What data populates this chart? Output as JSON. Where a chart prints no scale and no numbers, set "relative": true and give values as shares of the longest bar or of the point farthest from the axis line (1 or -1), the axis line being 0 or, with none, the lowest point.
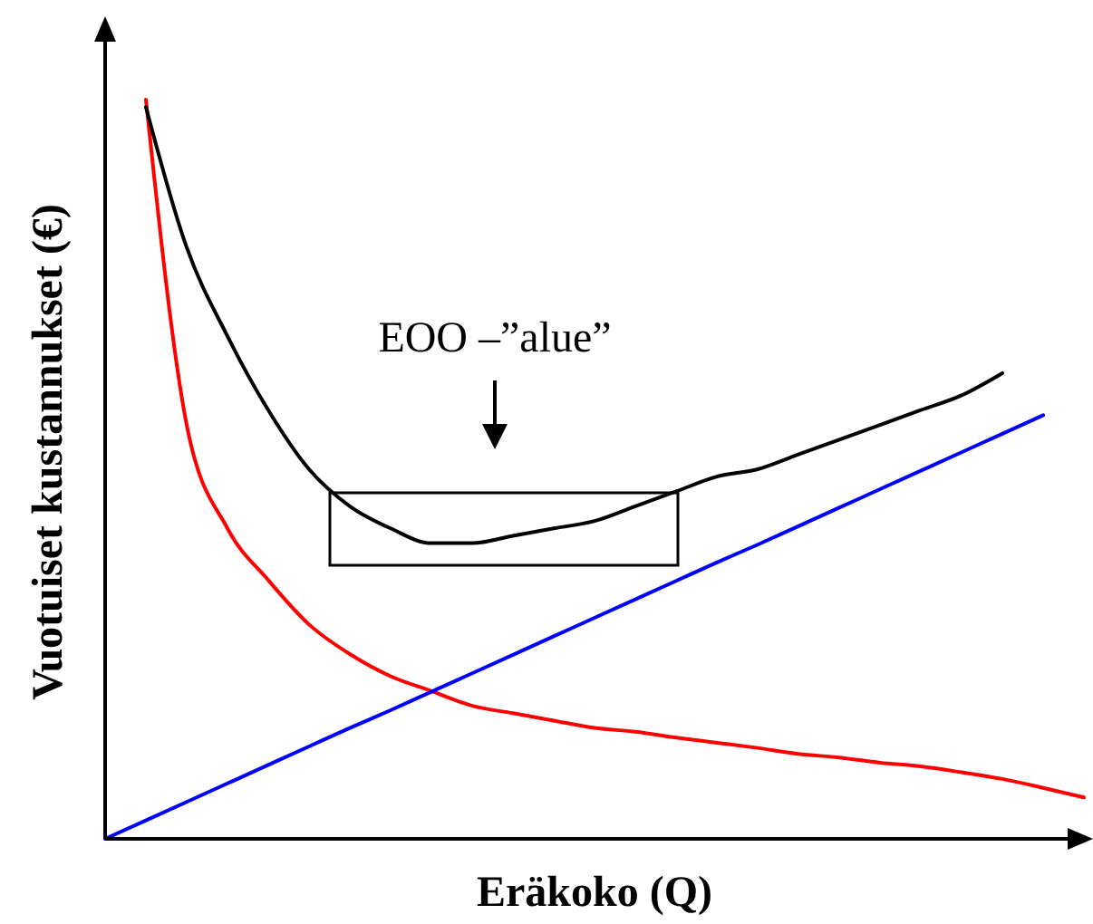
{
  "chart_data": {
    "type": "line",
    "xlabel": "Eräkoko (Q)",
    "ylabel": "Vuotuiset kustannukset (€)",
    "annotations": [
      "EOO –”alue”"
    ],
    "relative": true,
    "tick_labels": false,
    "categories": [
      null,
      null,
      null,
      null,
      null,
      null,
      null,
      null,
      null,
      null,
      null,
      null,
      null,
      null,
      null,
      null,
      null,
      null,
      null,
      null,
      null,
      null,
      null,
      null,
      null
    ],
    "series": [
      {
        "color": "#ff0000",
        "values": [
          null,
          1.0,
          0.56,
          0.42,
          0.35,
          0.29,
          0.25,
          0.22,
          0.2,
          0.18,
          0.17,
          0.16,
          0.15,
          0.145,
          0.137,
          0.13,
          0.123,
          0.115,
          0.11,
          0.103,
          0.098,
          0.09,
          0.081,
          0.069,
          0.056
        ]
      },
      {
        "color": "#0000ff",
        "values": [
          0,
          0.025,
          0.05,
          0.075,
          0.1,
          0.125,
          0.15,
          0.174,
          0.199,
          0.224,
          0.249,
          0.274,
          0.299,
          0.324,
          0.349,
          0.374,
          0.398,
          0.423,
          0.448,
          0.473,
          0.498,
          0.523,
          0.548,
          0.573,
          null
        ]
      },
      {
        "color": "#000000",
        "values": [
          null,
          0.99,
          0.8,
          0.68,
          0.58,
          0.5,
          0.45,
          0.42,
          0.4,
          0.4,
          0.41,
          0.42,
          0.43,
          0.45,
          0.47,
          0.49,
          0.5,
          0.52,
          0.54,
          0.56,
          0.58,
          0.6,
          0.63,
          null,
          null
        ]
      }
    ]
  }
}
